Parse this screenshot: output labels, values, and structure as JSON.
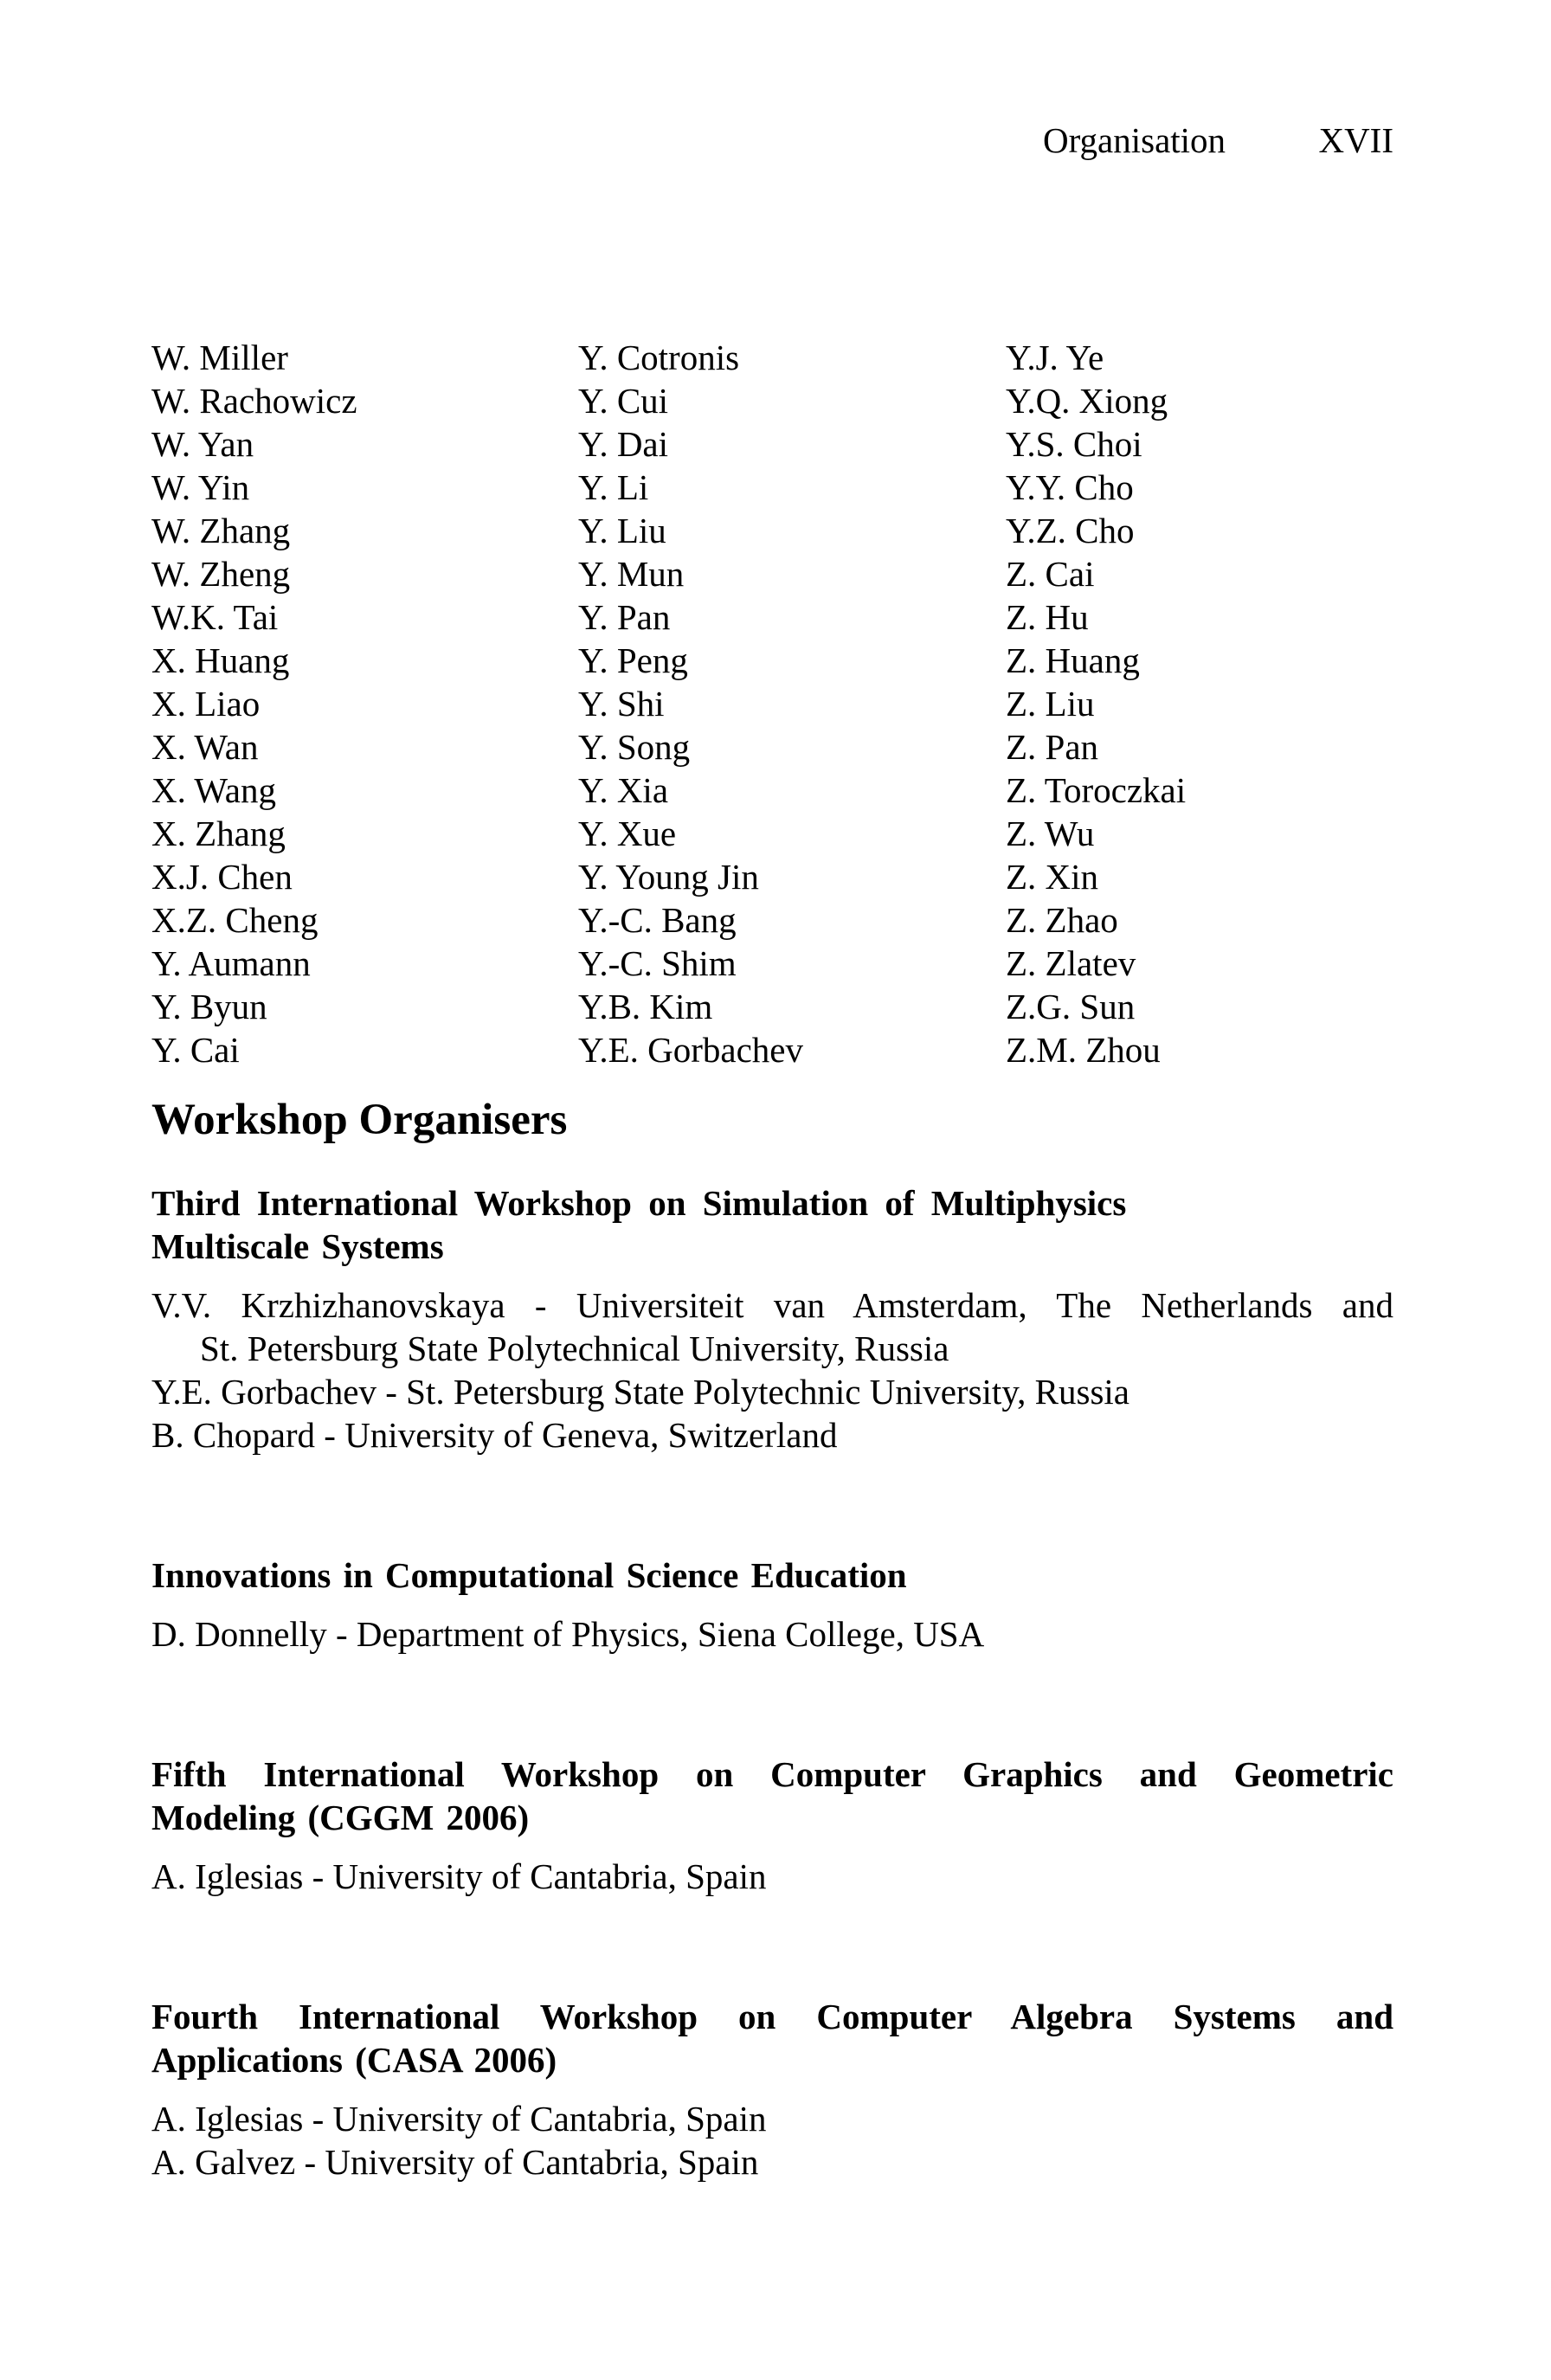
{
  "colors": {
    "background": "#ffffff",
    "text": "#000000"
  },
  "header": {
    "running_title": "Organisation",
    "page_number": "XVII"
  },
  "committee": {
    "columns": [
      [
        "W. Miller",
        "W. Rachowicz",
        "W. Yan",
        "W. Yin",
        "W. Zhang",
        "W. Zheng",
        "W.K. Tai",
        "X. Huang",
        "X. Liao",
        "X. Wan",
        "X. Wang",
        "X. Zhang",
        "X.J. Chen",
        "X.Z. Cheng",
        "Y. Aumann",
        "Y. Byun",
        "Y. Cai"
      ],
      [
        "Y. Cotronis",
        "Y. Cui",
        "Y. Dai",
        "Y. Li",
        "Y. Liu",
        "Y. Mun",
        "Y. Pan",
        "Y. Peng",
        "Y. Shi",
        "Y. Song",
        "Y. Xia",
        "Y. Xue",
        "Y. Young Jin",
        "Y.-C. Bang",
        "Y.-C. Shim",
        "Y.B. Kim",
        "Y.E. Gorbachev"
      ],
      [
        "Y.J. Ye",
        "Y.Q. Xiong",
        "Y.S. Choi",
        "Y.Y. Cho",
        "Y.Z. Cho",
        "Z. Cai",
        "Z. Hu",
        "Z. Huang",
        "Z. Liu",
        "Z. Pan",
        "Z. Toroczkai",
        "Z. Wu",
        "Z. Xin",
        "Z. Zhao",
        "Z. Zlatev",
        "Z.G. Sun",
        "Z.M. Zhou"
      ]
    ]
  },
  "section": {
    "title": "Workshop Organisers"
  },
  "workshops": [
    {
      "title_lines": [
        "Third International Workshop on Simulation of Multiphysics",
        "Multiscale Systems"
      ],
      "organiser_lines": [
        "V.V. Krzhizhanovskaya - Universiteit van Amsterdam, The Netherlands and",
        "St. Petersburg State Polytechnical University, Russia",
        "Y.E. Gorbachev - St. Petersburg State Polytechnic University, Russia",
        "B. Chopard - University of Geneva, Switzerland"
      ]
    },
    {
      "title_lines": [
        "Innovations in Computational Science Education"
      ],
      "organiser_lines": [
        "D. Donnelly - Department of Physics, Siena College, USA"
      ]
    },
    {
      "title_lines": [
        "Fifth International Workshop on Computer Graphics and Geometric",
        "Modeling (CGGM 2006)"
      ],
      "organiser_lines": [
        "A. Iglesias - University of Cantabria, Spain"
      ]
    },
    {
      "title_lines": [
        "Fourth International Workshop on Computer Algebra Systems and",
        "Applications (CASA 2006)"
      ],
      "organiser_lines": [
        "A. Iglesias - University of Cantabria, Spain",
        "A. Galvez - University of Cantabria, Spain"
      ]
    }
  ]
}
